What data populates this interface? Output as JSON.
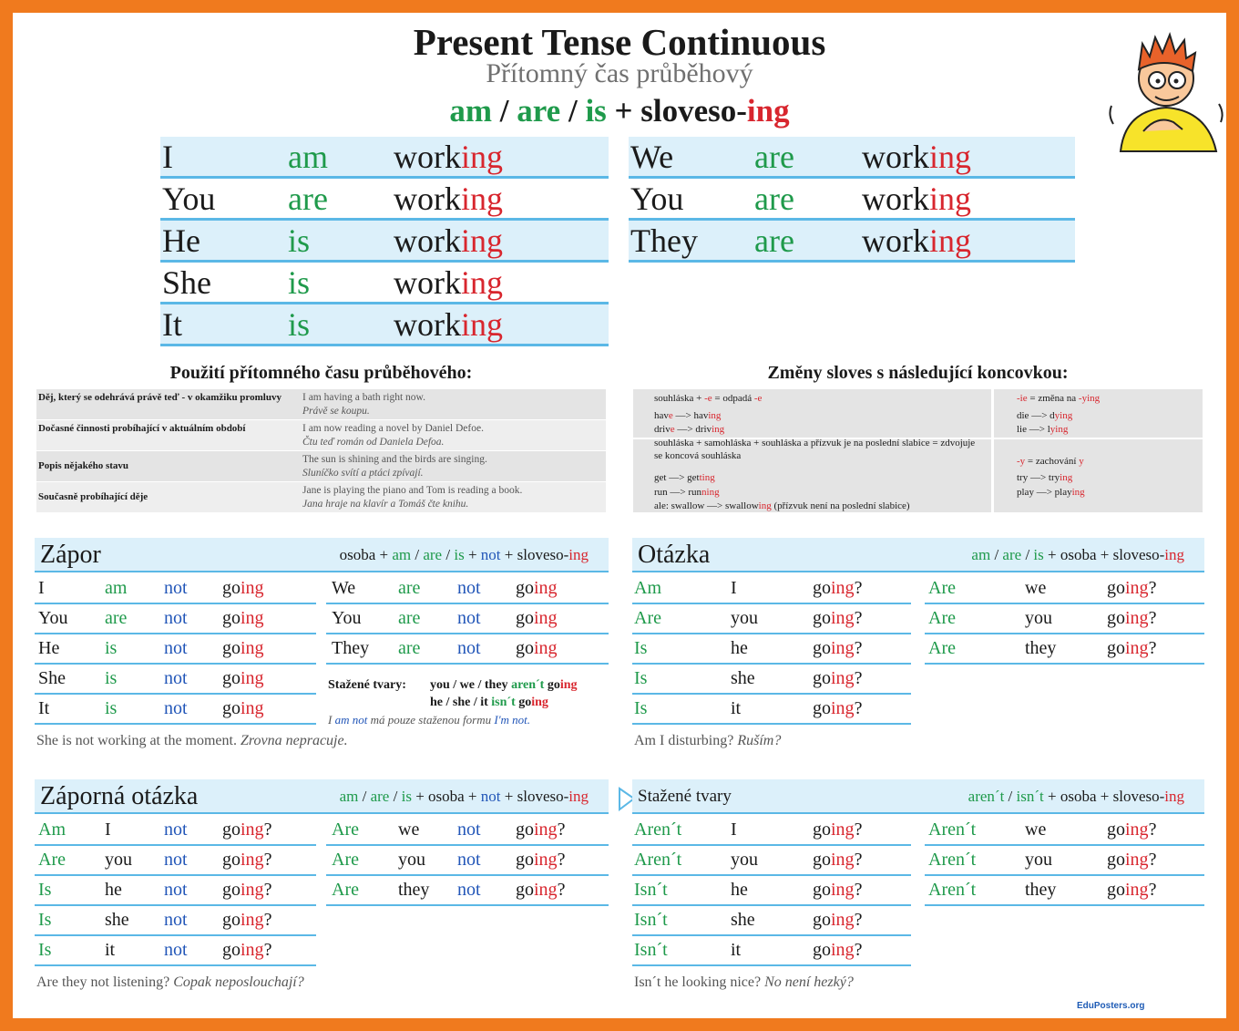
{
  "header": {
    "title": "Present Tense Continuous",
    "subtitle": "Přítomný čas průběhový",
    "formula": [
      {
        "text": "am",
        "color": "#1f9a4b"
      },
      " / ",
      {
        "text": "are",
        "color": "#1f9a4b"
      },
      " / ",
      {
        "text": "is",
        "color": "#1f9a4b"
      },
      " + sloveso-",
      {
        "text": "ing",
        "color": "#d8262e"
      }
    ]
  },
  "conjugation": {
    "left": {
      "column_colors": [
        "#1a1a1a",
        "#1f9a4b",
        "#1a1a1a"
      ],
      "rows": [
        [
          "I",
          "am",
          [
            "work",
            {
              "text": "ing",
              "color": "#d8262e"
            }
          ]
        ],
        [
          "You",
          "are",
          [
            "work",
            {
              "text": "ing",
              "color": "#d8262e"
            }
          ]
        ],
        [
          "He",
          "is",
          [
            "work",
            {
              "text": "ing",
              "color": "#d8262e"
            }
          ]
        ],
        [
          "She",
          "is",
          [
            "work",
            {
              "text": "ing",
              "color": "#d8262e"
            }
          ]
        ],
        [
          "It",
          "is",
          [
            "work",
            {
              "text": "ing",
              "color": "#d8262e"
            }
          ]
        ]
      ]
    },
    "right": {
      "column_colors": [
        "#1a1a1a",
        "#1f9a4b",
        "#1a1a1a"
      ],
      "rows": [
        [
          "We",
          "are",
          [
            "work",
            {
              "text": "ing",
              "color": "#d8262e"
            }
          ]
        ],
        [
          "You",
          "are",
          [
            "work",
            {
              "text": "ing",
              "color": "#d8262e"
            }
          ]
        ],
        [
          "They",
          "are",
          [
            "work",
            {
              "text": "ing",
              "color": "#d8262e"
            }
          ]
        ]
      ]
    }
  },
  "usage": {
    "heading": "Použití přítomného času průběhového:",
    "rows": [
      [
        "Děj, který se odehrává právě teď - v okamžiku promluvy",
        "I am having a bath right now.",
        "Právě se koupu."
      ],
      [
        "Dočasné činnosti probíhající v aktuálním období",
        "I am now reading a novel by Daniel Defoe.",
        "Čtu teď román od Daniela Defoa."
      ],
      [
        "Popis nějakého stavu",
        "The sun is shining and the birds are singing.",
        "Sluníčko svítí a ptáci zpívají."
      ],
      [
        "Současně probíhající děje",
        "Jane is playing the piano and Tom is reading a book.",
        "Jana hraje na klavír a Tomáš čte knihu."
      ]
    ]
  },
  "changes": {
    "heading": "Změny sloves s následující koncovkou:",
    "left": [
      [
        "souhláska + ",
        {
          "text": "-e",
          "color": "#d8262e"
        },
        " = odpadá ",
        {
          "text": "-e",
          "color": "#d8262e"
        }
      ],
      [
        "hav",
        {
          "text": "e",
          "color": "#d8262e"
        },
        " —> hav",
        {
          "text": "ing",
          "color": "#d8262e"
        }
      ],
      [
        "driv",
        {
          "text": "e",
          "color": "#d8262e"
        },
        " —> driv",
        {
          "text": "ing",
          "color": "#d8262e"
        }
      ],
      "souhláska + samohláska + souhláska a přízvuk je na poslední slabice = zdvojuje se koncová souhláska",
      [
        "get —> get",
        {
          "text": "ting",
          "color": "#d8262e"
        }
      ],
      [
        "run —> run",
        {
          "text": "ning",
          "color": "#d8262e"
        }
      ],
      [
        "ale: swallow —> swallow",
        {
          "text": "ing",
          "color": "#d8262e"
        },
        " (přízvuk není na poslední slabice)"
      ]
    ],
    "right": [
      [
        {
          "text": "-ie",
          "color": "#d8262e"
        },
        " = změna na ",
        {
          "text": "-ying",
          "color": "#d8262e"
        }
      ],
      [
        "die —> d",
        {
          "text": "ying",
          "color": "#d8262e"
        }
      ],
      [
        "lie —> l",
        {
          "text": "ying",
          "color": "#d8262e"
        }
      ],
      [
        {
          "text": "-y",
          "color": "#d8262e"
        },
        " = zachování ",
        {
          "text": "y",
          "color": "#d8262e"
        }
      ],
      [
        "try —> try",
        {
          "text": "ing",
          "color": "#d8262e"
        }
      ],
      [
        "play —> play",
        {
          "text": "ing",
          "color": "#d8262e"
        }
      ]
    ]
  },
  "negative": {
    "title": "Zápor",
    "formula": [
      "osoba + ",
      {
        "text": "am",
        "color": "#1f9a4b"
      },
      " / ",
      {
        "text": "are",
        "color": "#1f9a4b"
      },
      " / ",
      {
        "text": "is",
        "color": "#1f9a4b"
      },
      " + ",
      {
        "text": "not",
        "color": "#2256b8"
      },
      " + sloveso-",
      {
        "text": "ing",
        "color": "#d8262e"
      }
    ],
    "left": {
      "column_colors": [
        "#1a1a1a",
        "#1f9a4b",
        "#2256b8",
        "#1a1a1a"
      ],
      "rows": [
        [
          "I",
          "am",
          "not",
          [
            "go",
            {
              "text": "ing",
              "color": "#d8262e"
            }
          ]
        ],
        [
          "You",
          "are",
          "not",
          [
            "go",
            {
              "text": "ing",
              "color": "#d8262e"
            }
          ]
        ],
        [
          "He",
          "is",
          "not",
          [
            "go",
            {
              "text": "ing",
              "color": "#d8262e"
            }
          ]
        ],
        [
          "She",
          "is",
          "not",
          [
            "go",
            {
              "text": "ing",
              "color": "#d8262e"
            }
          ]
        ],
        [
          "It",
          "is",
          "not",
          [
            "go",
            {
              "text": "ing",
              "color": "#d8262e"
            }
          ]
        ]
      ]
    },
    "right": {
      "column_colors": [
        "#1a1a1a",
        "#1f9a4b",
        "#2256b8",
        "#1a1a1a"
      ],
      "rows": [
        [
          "We",
          "are",
          "not",
          [
            "go",
            {
              "text": "ing",
              "color": "#d8262e"
            }
          ]
        ],
        [
          "You",
          "are",
          "not",
          [
            "go",
            {
              "text": "ing",
              "color": "#d8262e"
            }
          ]
        ],
        [
          "They",
          "are",
          "not",
          [
            "go",
            {
              "text": "ing",
              "color": "#d8262e"
            }
          ]
        ]
      ]
    },
    "notes": {
      "label": "Stažené tvary:",
      "lines": [
        [
          "you / we / they ",
          {
            "text": "aren´t",
            "color": "#1f9a4b"
          },
          " go",
          {
            "text": "ing",
            "color": "#d8262e"
          }
        ],
        [
          "he / she / it ",
          {
            "text": "isn´t",
            "color": "#1f9a4b"
          },
          " go",
          {
            "text": "ing",
            "color": "#d8262e"
          }
        ],
        [
          "I ",
          {
            "text": "am not",
            "color": "#2256b8"
          },
          " má pouze staženou formu ",
          {
            "text": "I'm not.",
            "color": "#2256b8"
          }
        ]
      ]
    },
    "example": {
      "english": "She is not working at the moment.",
      "czech": "Zrovna nepracuje."
    }
  },
  "question": {
    "title": "Otázka",
    "formula": [
      {
        "text": "am",
        "color": "#1f9a4b"
      },
      " / ",
      {
        "text": "are",
        "color": "#1f9a4b"
      },
      " / ",
      {
        "text": "is",
        "color": "#1f9a4b"
      },
      " + osoba + sloveso-",
      {
        "text": "ing",
        "color": "#d8262e"
      }
    ],
    "left": {
      "column_colors": [
        "#1f9a4b",
        "#1a1a1a",
        "#1a1a1a"
      ],
      "rows": [
        [
          "Am",
          "I",
          [
            "go",
            {
              "text": "ing",
              "color": "#d8262e"
            },
            "?"
          ]
        ],
        [
          "Are",
          "you",
          [
            "go",
            {
              "text": "ing",
              "color": "#d8262e"
            },
            "?"
          ]
        ],
        [
          "Is",
          "he",
          [
            "go",
            {
              "text": "ing",
              "color": "#d8262e"
            },
            "?"
          ]
        ],
        [
          "Is",
          "she",
          [
            "go",
            {
              "text": "ing",
              "color": "#d8262e"
            },
            "?"
          ]
        ],
        [
          "Is",
          "it",
          [
            "go",
            {
              "text": "ing",
              "color": "#d8262e"
            },
            "?"
          ]
        ]
      ]
    },
    "right": {
      "column_colors": [
        "#1f9a4b",
        "#1a1a1a",
        "#1a1a1a"
      ],
      "rows": [
        [
          "Are",
          "we",
          [
            "go",
            {
              "text": "ing",
              "color": "#d8262e"
            },
            "?"
          ]
        ],
        [
          "Are",
          "you",
          [
            "go",
            {
              "text": "ing",
              "color": "#d8262e"
            },
            "?"
          ]
        ],
        [
          "Are",
          "they",
          [
            "go",
            {
              "text": "ing",
              "color": "#d8262e"
            },
            "?"
          ]
        ]
      ]
    },
    "example": {
      "english": "Am I disturbing?",
      "czech": "Ruším?"
    }
  },
  "negative_question": {
    "title": "Záporná otázka",
    "formula": [
      {
        "text": "am",
        "color": "#1f9a4b"
      },
      " / ",
      {
        "text": "are",
        "color": "#1f9a4b"
      },
      " / ",
      {
        "text": "is",
        "color": "#1f9a4b"
      },
      " + osoba + ",
      {
        "text": "not",
        "color": "#2256b8"
      },
      " + sloveso-",
      {
        "text": "ing",
        "color": "#d8262e"
      }
    ],
    "left": {
      "column_colors": [
        "#1f9a4b",
        "#1a1a1a",
        "#2256b8",
        "#1a1a1a"
      ],
      "rows": [
        [
          "Am",
          "I",
          "not",
          [
            "go",
            {
              "text": "ing",
              "color": "#d8262e"
            },
            "?"
          ]
        ],
        [
          "Are",
          "you",
          "not",
          [
            "go",
            {
              "text": "ing",
              "color": "#d8262e"
            },
            "?"
          ]
        ],
        [
          "Is",
          "he",
          "not",
          [
            "go",
            {
              "text": "ing",
              "color": "#d8262e"
            },
            "?"
          ]
        ],
        [
          "Is",
          "she",
          "not",
          [
            "go",
            {
              "text": "ing",
              "color": "#d8262e"
            },
            "?"
          ]
        ],
        [
          "Is",
          "it",
          "not",
          [
            "go",
            {
              "text": "ing",
              "color": "#d8262e"
            },
            "?"
          ]
        ]
      ]
    },
    "right": {
      "column_colors": [
        "#1f9a4b",
        "#1a1a1a",
        "#2256b8",
        "#1a1a1a"
      ],
      "rows": [
        [
          "Are",
          "we",
          "not",
          [
            "go",
            {
              "text": "ing",
              "color": "#d8262e"
            },
            "?"
          ]
        ],
        [
          "Are",
          "you",
          "not",
          [
            "go",
            {
              "text": "ing",
              "color": "#d8262e"
            },
            "?"
          ]
        ],
        [
          "Are",
          "they",
          "not",
          [
            "go",
            {
              "text": "ing",
              "color": "#d8262e"
            },
            "?"
          ]
        ]
      ]
    },
    "example": {
      "english": "Are they not listening?",
      "czech": "Copak neposlouchají?"
    }
  },
  "contracted": {
    "title": "Stažené tvary",
    "formula": [
      {
        "text": "aren´t",
        "color": "#1f9a4b"
      },
      " / ",
      {
        "text": "isn´t",
        "color": "#1f9a4b"
      },
      " + osoba + sloveso-",
      {
        "text": "ing",
        "color": "#d8262e"
      }
    ],
    "left": {
      "column_colors": [
        "#1f9a4b",
        "#1a1a1a",
        "#1a1a1a"
      ],
      "rows": [
        [
          "Aren´t",
          "I",
          [
            "go",
            {
              "text": "ing",
              "color": "#d8262e"
            },
            "?"
          ]
        ],
        [
          "Aren´t",
          "you",
          [
            "go",
            {
              "text": "ing",
              "color": "#d8262e"
            },
            "?"
          ]
        ],
        [
          "Isn´t",
          "he",
          [
            "go",
            {
              "text": "ing",
              "color": "#d8262e"
            },
            "?"
          ]
        ],
        [
          "Isn´t",
          "she",
          [
            "go",
            {
              "text": "ing",
              "color": "#d8262e"
            },
            "?"
          ]
        ],
        [
          "Isn´t",
          "it",
          [
            "go",
            {
              "text": "ing",
              "color": "#d8262e"
            },
            "?"
          ]
        ]
      ]
    },
    "right": {
      "column_colors": [
        "#1f9a4b",
        "#1a1a1a",
        "#1a1a1a"
      ],
      "rows": [
        [
          "Aren´t",
          "we",
          [
            "go",
            {
              "text": "ing",
              "color": "#d8262e"
            },
            "?"
          ]
        ],
        [
          "Aren´t",
          "you",
          [
            "go",
            {
              "text": "ing",
              "color": "#d8262e"
            },
            "?"
          ]
        ],
        [
          "Aren´t",
          "they",
          [
            "go",
            {
              "text": "ing",
              "color": "#d8262e"
            },
            "?"
          ]
        ]
      ]
    },
    "example": {
      "english": "Isn´t he looking nice?",
      "czech": "No není hezký?"
    }
  },
  "footer": {
    "brand": "EduPosters.org"
  }
}
